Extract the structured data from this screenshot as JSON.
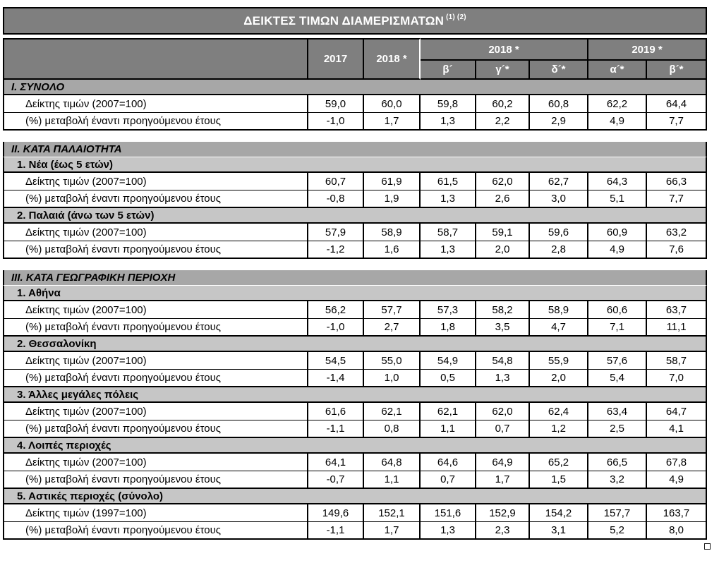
{
  "colors": {
    "header_bg": "#7f7f7f",
    "header_text": "#ffffff",
    "section_bg": "#a7a7a7",
    "subsection_bg": "#c6c6c6",
    "border": "#000000"
  },
  "table": {
    "title": "ΔΕΙΚΤΕΣ ΤΙΜΩΝ ΔΙΑΜΕΡΙΣΜΑΤΩΝ",
    "title_superscript": "(1) (2)",
    "columns": {
      "years": [
        "2017",
        "2018 *"
      ],
      "groups": [
        {
          "label": "2018 *",
          "quarters": [
            "β´",
            "γ´*",
            "δ´*"
          ]
        },
        {
          "label": "2019 *",
          "quarters": [
            "α´*",
            "β´*"
          ]
        }
      ]
    },
    "sections": [
      {
        "heading": "I. ΣΥΝΟΛΟ",
        "blocks": [
          {
            "rows": [
              {
                "label": "Δείκτης τιμών (2007=100)",
                "values": [
                  "59,0",
                  "60,0",
                  "59,8",
                  "60,2",
                  "60,8",
                  "62,2",
                  "64,4"
                ]
              },
              {
                "label": "(%) μεταβολή έναντι προηγούμενου έτους",
                "values": [
                  "-1,0",
                  "1,7",
                  "1,3",
                  "2,2",
                  "2,9",
                  "4,9",
                  "7,7"
                ]
              }
            ]
          }
        ]
      },
      {
        "heading": "II. ΚΑΤΑ ΠΑΛΑΙΟΤΗΤΑ",
        "blocks": [
          {
            "subheading": "1.  Νέα (έως 5 ετών)",
            "rows": [
              {
                "label": "Δείκτης τιμών (2007=100)",
                "values": [
                  "60,7",
                  "61,9",
                  "61,5",
                  "62,0",
                  "62,7",
                  "64,3",
                  "66,3"
                ]
              },
              {
                "label": "(%) μεταβολή έναντι προηγούμενου έτους",
                "values": [
                  "-0,8",
                  "1,9",
                  "1,3",
                  "2,6",
                  "3,0",
                  "5,1",
                  "7,7"
                ]
              }
            ]
          },
          {
            "subheading": "2.  Παλαιά (άνω των 5 ετών)",
            "rows": [
              {
                "label": "Δείκτης τιμών (2007=100)",
                "values": [
                  "57,9",
                  "58,9",
                  "58,7",
                  "59,1",
                  "59,6",
                  "60,9",
                  "63,2"
                ]
              },
              {
                "label": "(%) μεταβολή έναντι προηγούμενου έτους",
                "values": [
                  "-1,2",
                  "1,6",
                  "1,3",
                  "2,0",
                  "2,8",
                  "4,9",
                  "7,6"
                ]
              }
            ]
          }
        ]
      },
      {
        "heading": "III. ΚΑΤΑ ΓΕΩΓΡΑΦΙΚΗ ΠΕΡΙΟΧΗ",
        "blocks": [
          {
            "subheading": "1.  Αθήνα",
            "rows": [
              {
                "label": "Δείκτης τιμών (2007=100)",
                "values": [
                  "56,2",
                  "57,7",
                  "57,3",
                  "58,2",
                  "58,9",
                  "60,6",
                  "63,7"
                ]
              },
              {
                "label": "(%) μεταβολή έναντι προηγούμενου έτους",
                "values": [
                  "-1,0",
                  "2,7",
                  "1,8",
                  "3,5",
                  "4,7",
                  "7,1",
                  "11,1"
                ]
              }
            ]
          },
          {
            "subheading": "2.  Θεσσαλονίκη",
            "rows": [
              {
                "label": "Δείκτης τιμών (2007=100)",
                "values": [
                  "54,5",
                  "55,0",
                  "54,9",
                  "54,8",
                  "55,9",
                  "57,6",
                  "58,7"
                ]
              },
              {
                "label": "(%) μεταβολή έναντι προηγούμενου έτους",
                "values": [
                  "-1,4",
                  "1,0",
                  "0,5",
                  "1,3",
                  "2,0",
                  "5,4",
                  "7,0"
                ]
              }
            ]
          },
          {
            "subheading": "3.  Άλλες μεγάλες πόλεις",
            "rows": [
              {
                "label": "Δείκτης τιμών (2007=100)",
                "values": [
                  "61,6",
                  "62,1",
                  "62,1",
                  "62,0",
                  "62,4",
                  "63,4",
                  "64,7"
                ]
              },
              {
                "label": "(%) μεταβολή έναντι προηγούμενου έτους",
                "values": [
                  "-1,1",
                  "0,8",
                  "1,1",
                  "0,7",
                  "1,2",
                  "2,5",
                  "4,1"
                ]
              }
            ]
          },
          {
            "subheading": "4.  Λοιπές περιοχές",
            "rows": [
              {
                "label": "Δείκτης τιμών (2007=100)",
                "values": [
                  "64,1",
                  "64,8",
                  "64,6",
                  "64,9",
                  "65,2",
                  "66,5",
                  "67,8"
                ]
              },
              {
                "label": "(%) μεταβολή έναντι προηγούμενου έτους",
                "values": [
                  "-0,7",
                  "1,1",
                  "0,7",
                  "1,7",
                  "1,5",
                  "3,2",
                  "4,9"
                ]
              }
            ]
          },
          {
            "subheading": "5.  Αστικές περιοχές (σύνολο)",
            "rows": [
              {
                "label": "Δείκτης τιμών (1997=100)",
                "values": [
                  "149,6",
                  "152,1",
                  "151,6",
                  "152,9",
                  "154,2",
                  "157,7",
                  "163,7"
                ]
              },
              {
                "label": "(%) μεταβολή έναντι προηγούμενου έτους",
                "values": [
                  "-1,1",
                  "1,7",
                  "1,3",
                  "2,3",
                  "3,1",
                  "5,2",
                  "8,0"
                ]
              }
            ]
          }
        ]
      }
    ]
  }
}
